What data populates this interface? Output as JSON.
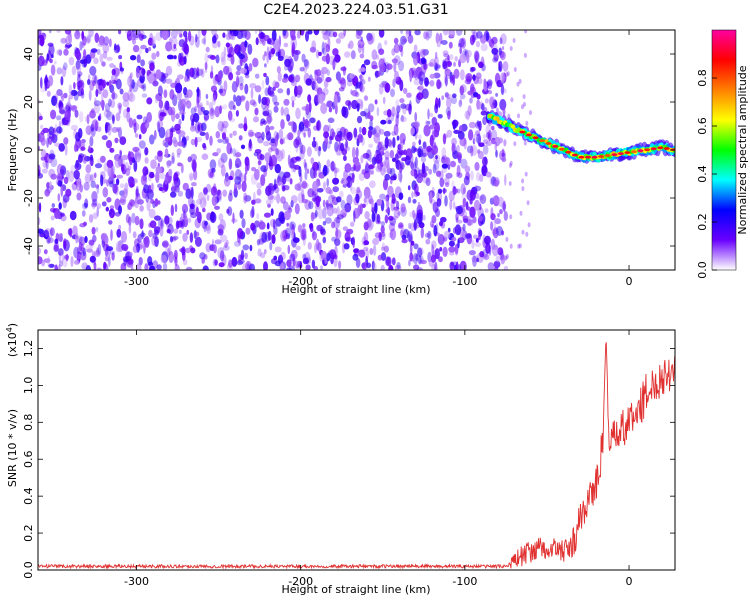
{
  "title": "C2E4.2023.224.03.51.G31",
  "chart_data": [
    {
      "type": "heatmap",
      "xlabel": "Height of straight line (km)",
      "ylabel": "Frequency (Hz)",
      "xlim": [
        -360,
        28
      ],
      "ylim": [
        -50,
        50
      ],
      "x_ticks": [
        -300,
        -200,
        -100,
        0
      ],
      "y_ticks": [
        -40,
        -20,
        0,
        20,
        40
      ],
      "noise_region_x": [
        -360,
        -75
      ],
      "noise_level_range": [
        0.05,
        0.2
      ],
      "signal_track": [
        {
          "x": -85,
          "y": 14
        },
        {
          "x": -78,
          "y": 12
        },
        {
          "x": -70,
          "y": 9
        },
        {
          "x": -60,
          "y": 6
        },
        {
          "x": -50,
          "y": 3
        },
        {
          "x": -40,
          "y": 0
        },
        {
          "x": -30,
          "y": -3
        },
        {
          "x": -20,
          "y": -3
        },
        {
          "x": -10,
          "y": -2
        },
        {
          "x": 0,
          "y": -1
        },
        {
          "x": 10,
          "y": 0
        },
        {
          "x": 20,
          "y": 1
        },
        {
          "x": 28,
          "y": 0
        }
      ],
      "grid": false,
      "colorbar": {
        "label": "Normalized spectral amplitude",
        "range": [
          0,
          1
        ],
        "ticks": [
          0.0,
          0.2,
          0.4,
          0.6,
          0.8
        ],
        "tick_labels": [
          "0.0",
          "0.2",
          "0.4",
          "0.6",
          "0.8"
        ],
        "colormap": [
          "#ffffff",
          "#6a00ff",
          "#0000ff",
          "#00ffff",
          "#00ff00",
          "#ffff00",
          "#ff8000",
          "#ff0000",
          "#ff00a0"
        ]
      }
    },
    {
      "type": "line",
      "xlabel": "Height of straight line (km)",
      "ylabel": "SNR (10 * v/v)",
      "y_scale_label": "(x10",
      "y_scale_exponent": "4",
      "y_scale_close": ")",
      "xlim": [
        -360,
        28
      ],
      "ylim": [
        0,
        1.3
      ],
      "x_ticks": [
        -300,
        -200,
        -100,
        0
      ],
      "y_ticks": [
        0.0,
        0.2,
        0.4,
        0.6,
        0.8,
        1.0,
        1.2
      ],
      "y_tick_labels": [
        "0.0",
        "0.2",
        "0.4",
        "0.6",
        "0.8",
        "1.0",
        "1.2"
      ],
      "grid": false,
      "series": [
        {
          "color": "#e03030",
          "x": [
            -360,
            -300,
            -250,
            -200,
            -160,
            -120,
            -90,
            -75,
            -70,
            -65,
            -60,
            -55,
            -50,
            -45,
            -40,
            -35,
            -30,
            -25,
            -20,
            -18,
            -16,
            -14,
            -12,
            -10,
            -5,
            0,
            5,
            10,
            15,
            20,
            25,
            28
          ],
          "y": [
            0.02,
            0.02,
            0.02,
            0.02,
            0.02,
            0.02,
            0.02,
            0.02,
            0.05,
            0.08,
            0.1,
            0.12,
            0.1,
            0.12,
            0.1,
            0.12,
            0.25,
            0.4,
            0.45,
            0.55,
            0.7,
            1.28,
            0.65,
            0.7,
            0.75,
            0.8,
            0.85,
            0.95,
            1.0,
            1.05,
            1.08,
            1.1
          ]
        }
      ]
    }
  ]
}
